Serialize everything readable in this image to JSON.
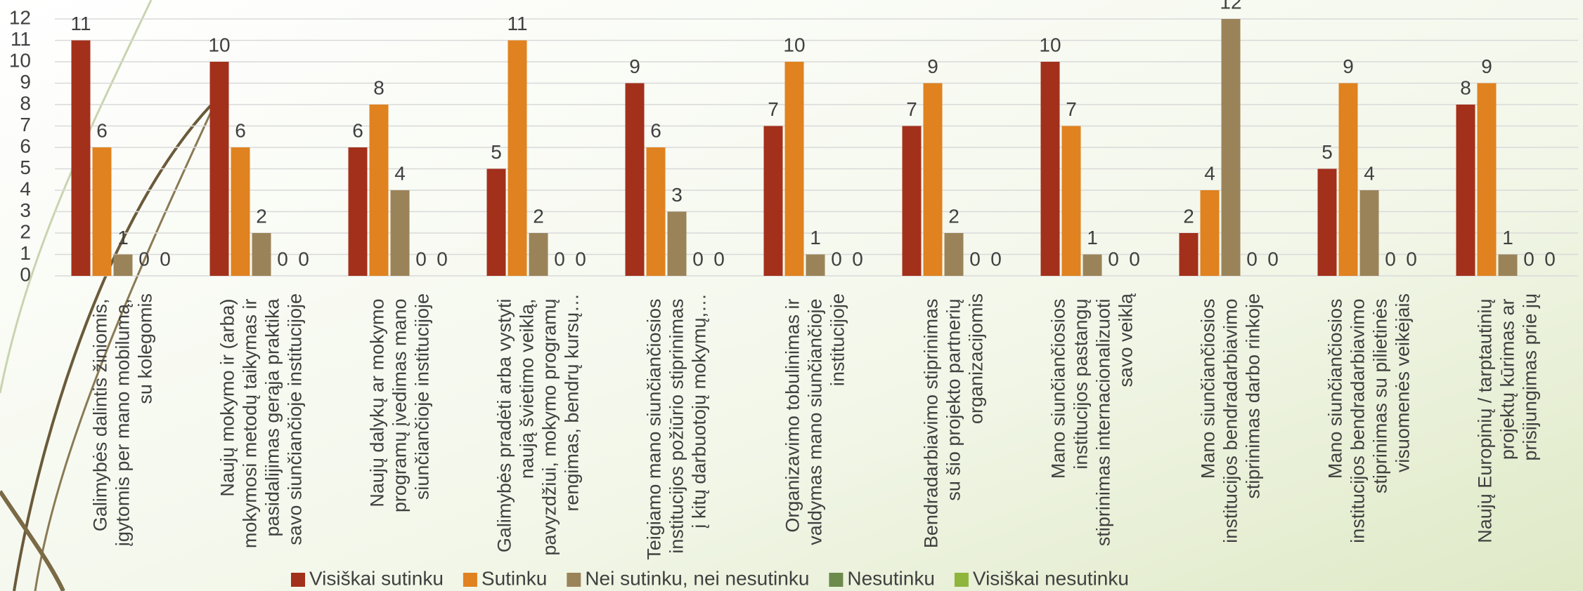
{
  "chart_data": {
    "type": "bar",
    "categories": [
      "Galimybės dalintis žiniomis, įgytomis per mano mobilumą, su kolegomis",
      "Naujų mokymo ir (arba) mokymosi metodų taikymas ir pasidalijimas gerąja praktika savo siunčiančioje institucijoje",
      "Naujų dalykų ar mokymo programų įvedimas mano siunčiančioje institucijoje",
      "Galimybės pradėti arba vystyti naują švietimo veiklą, pavyzdžiui, mokymo programų rengimas, bendrų kursų…",
      "Teigiamo mano siunčiančiosios institucijos požiūrio stiprinimas į kitų darbuotojų mokymų,…",
      "Organizavimo tobulinimas ir valdymas mano siunčiančioje institucijoje",
      "Bendradarbiavimo stiprinimas su šio projekto partnerių organizacijomis",
      "Mano siunčiančiosios institucijos pastangų stiprinimas internacionalizuoti savo veiklą",
      "Mano siunčiančiosios institucijos bendradarbiavimo stiprinimas darbo rinkoje",
      "Mano siunčiančiosios institucijos bendradarbiavimo stiprinimas su pilietinės visuomenės veikėjais",
      "Naujų Europinių / tarptautinių projektų kūrimas ar prisijungimas prie jų"
    ],
    "series": [
      {
        "name": "Visiškai sutinku",
        "color": "#a3301b",
        "values": [
          11,
          10,
          6,
          5,
          9,
          7,
          7,
          10,
          2,
          5,
          8
        ]
      },
      {
        "name": "Sutinku",
        "color": "#e0821f",
        "values": [
          6,
          6,
          8,
          11,
          6,
          10,
          9,
          7,
          4,
          9,
          9
        ]
      },
      {
        "name": "Nei sutinku, nei nesutinku",
        "color": "#9b8359",
        "values": [
          1,
          2,
          4,
          2,
          3,
          1,
          2,
          1,
          12,
          4,
          1
        ]
      },
      {
        "name": "Nesutinku",
        "color": "#6b8a4c",
        "values": [
          0,
          0,
          0,
          0,
          0,
          0,
          0,
          0,
          0,
          0,
          0
        ]
      },
      {
        "name": "Visiškai nesutinku",
        "color": "#8fb53c",
        "values": [
          0,
          0,
          0,
          0,
          0,
          0,
          0,
          0,
          0,
          0,
          0
        ]
      }
    ],
    "ylim": [
      0,
      12
    ],
    "yticks": [
      0,
      1,
      2,
      3,
      4,
      5,
      6,
      7,
      8,
      9,
      10,
      11,
      12
    ],
    "grid": true,
    "legend": "bottom"
  }
}
